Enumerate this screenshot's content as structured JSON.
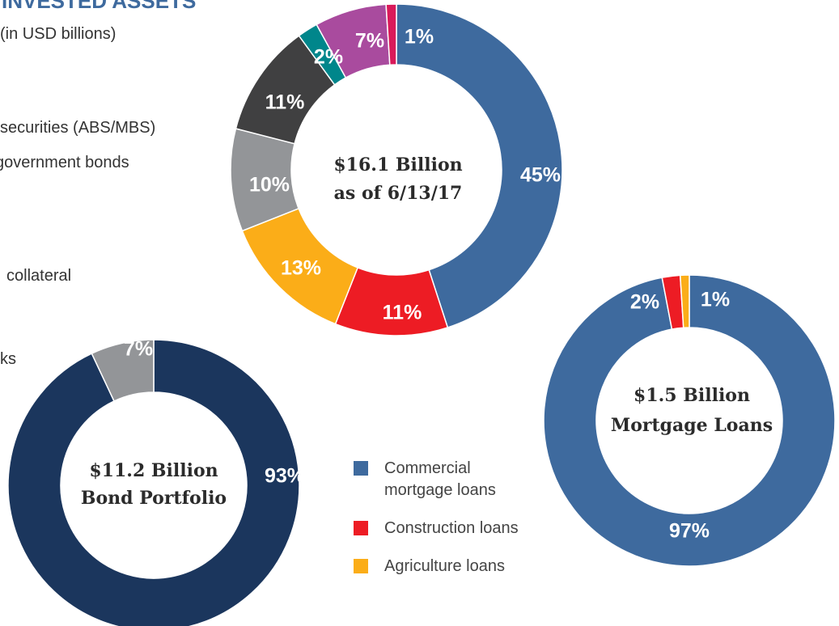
{
  "header": {
    "title": "INVESTED ASSETS",
    "subtitle": "(in USD billions)",
    "legend_fragments": [
      "securities (ABS/MBS)",
      "government bonds",
      "collateral",
      "ks"
    ]
  },
  "chart_data": [
    {
      "type": "pie",
      "center_label": [
        "$16.1 Billion",
        "as of 6/13/17"
      ],
      "values": [
        45,
        11,
        13,
        10,
        11,
        2,
        7,
        1
      ],
      "value_labels": [
        "45%",
        "11%",
        "13%",
        "10%",
        "11%",
        "2%",
        "7%",
        "1%"
      ],
      "colors": [
        "#3e6a9e",
        "#ed1c24",
        "#fbad18",
        "#939598",
        "#404041",
        "#00868b",
        "#a94b9e",
        "#d91a5a"
      ]
    },
    {
      "type": "pie",
      "center_label": [
        "$11.2 Billion",
        "Bond Portfolio"
      ],
      "values": [
        93,
        7
      ],
      "value_labels": [
        "93%",
        "7%"
      ],
      "colors": [
        "#1b365d",
        "#939598"
      ]
    },
    {
      "type": "pie",
      "center_label": [
        "$1.5 Billion",
        "Mortgage Loans"
      ],
      "categories": [
        "Commercial mortgage loans",
        "Construction loans",
        "Agriculture loans"
      ],
      "values": [
        97,
        2,
        1
      ],
      "value_labels": [
        "97%",
        "2%",
        "1%"
      ],
      "colors": [
        "#3e6a9e",
        "#ed1c24",
        "#fbad18"
      ]
    }
  ]
}
